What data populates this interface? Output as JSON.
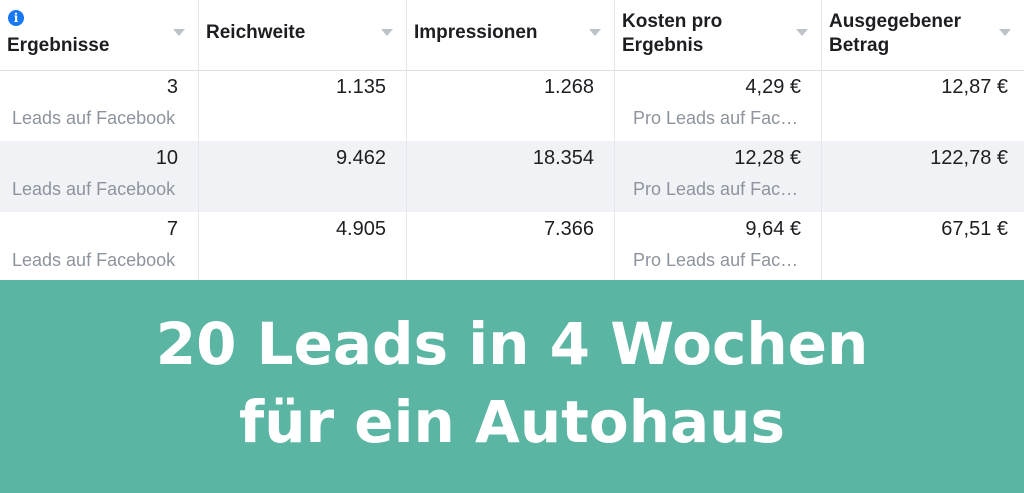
{
  "table": {
    "columns": [
      {
        "label": "Ergebnisse",
        "has_info_icon": true
      },
      {
        "label": "Reichweite"
      },
      {
        "label": "Impressionen"
      },
      {
        "label": "Kosten pro\nErgebnis"
      },
      {
        "label": "Ausgegebener\nBetrag"
      }
    ],
    "rows": [
      {
        "results": "3",
        "results_sub": "Leads auf Facebook",
        "reach": "1.135",
        "impressions": "1.268",
        "cost": "4,29 €",
        "cost_sub": "Pro Leads auf Fac…",
        "spent": "12,87 €"
      },
      {
        "results": "10",
        "results_sub": "Leads auf Facebook",
        "reach": "9.462",
        "impressions": "18.354",
        "cost": "12,28 €",
        "cost_sub": "Pro Leads auf Fac…",
        "spent": "122,78 €"
      },
      {
        "results": "7",
        "results_sub": "Leads auf Facebook",
        "reach": "4.905",
        "impressions": "7.366",
        "cost": "9,64 €",
        "cost_sub": "Pro Leads auf Fac…",
        "spent": "67,51 €"
      }
    ]
  },
  "banner": {
    "line1": "20 Leads in 4 Wochen",
    "line2": "für ein Autohaus"
  },
  "colors": {
    "banner_bg": "#5ab5a3",
    "info_icon": "#1877f2",
    "alt_row_bg": "#f0f2f5"
  },
  "icons": {
    "info": "info-icon",
    "sort": "chevron-down-icon"
  }
}
